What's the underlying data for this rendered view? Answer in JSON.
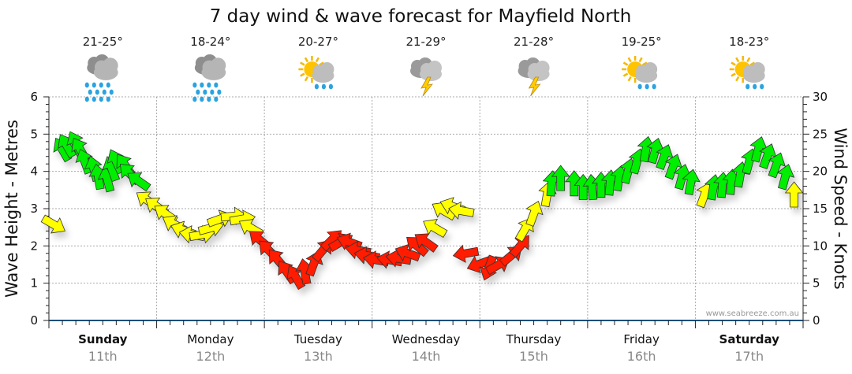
{
  "chart_data": {
    "type": "scatter",
    "title": "7 day wind & wave forecast for Mayfield North",
    "ylabel_left": "Wave Height - Metres",
    "ylabel_right": "Wind Speed - Knots",
    "ylim_left": [
      0,
      6
    ],
    "ylim_right": [
      0,
      30
    ],
    "yticks_left": [
      "0",
      "1",
      "2",
      "3",
      "4",
      "5",
      "6"
    ],
    "yticks_right": [
      "0",
      "5",
      "10",
      "15",
      "20",
      "25",
      "30"
    ],
    "xlim_hours": [
      0,
      168
    ],
    "grid": true,
    "watermark": "www.seabreeze.com.au",
    "days": [
      {
        "day": "Sunday",
        "date": "11th",
        "bold": true,
        "temp": "21-25°",
        "icon": "rain-icon"
      },
      {
        "day": "Monday",
        "date": "12th",
        "bold": false,
        "temp": "18-24°",
        "icon": "rain-icon"
      },
      {
        "day": "Tuesday",
        "date": "13th",
        "bold": false,
        "temp": "20-27°",
        "icon": "sun-cloud-shower-icon"
      },
      {
        "day": "Wednesday",
        "date": "14th",
        "bold": false,
        "temp": "21-29°",
        "icon": "storm-icon"
      },
      {
        "day": "Thursday",
        "date": "15th",
        "bold": false,
        "temp": "21-28°",
        "icon": "storm-icon"
      },
      {
        "day": "Friday",
        "date": "16th",
        "bold": false,
        "temp": "19-25°",
        "icon": "sun-cloud-shower-icon"
      },
      {
        "day": "Saturday",
        "date": "17th",
        "bold": true,
        "temp": "18-23°",
        "icon": "sun-cloud-shower-icon"
      }
    ],
    "wind_color_scale": {
      "red_below": 11,
      "yellow_below": 17,
      "red": "#ff1a00",
      "yellow": "#ffff00",
      "green": "#00ee00"
    },
    "wind": {
      "hours": [
        1,
        3,
        4,
        6,
        7,
        8,
        10,
        11,
        13,
        14,
        15,
        17,
        18,
        20,
        22,
        24,
        26,
        28,
        30,
        32,
        34,
        36,
        38,
        41,
        43,
        45,
        47,
        49,
        51,
        53,
        55,
        57,
        59,
        61,
        63,
        65,
        67,
        69,
        71,
        73,
        76,
        78,
        80,
        82,
        84,
        86,
        88,
        90,
        92,
        93,
        96,
        98,
        100,
        103,
        105,
        106,
        108,
        111,
        112,
        114,
        117,
        119,
        121,
        123,
        125,
        127,
        129,
        131,
        133,
        135,
        137,
        139,
        141,
        143,
        146,
        148,
        150,
        152,
        154,
        156,
        158,
        160,
        162,
        164,
        166
      ],
      "knots": [
        12.9,
        22.9,
        23.4,
        23.7,
        22.9,
        21.3,
        20.3,
        19.2,
        18.9,
        20.3,
        21.3,
        20.8,
        19.7,
        18.7,
        16.1,
        15.3,
        14.3,
        12.9,
        12.1,
        11.5,
        11.5,
        12.4,
        13.6,
        14.0,
        13.6,
        12.4,
        10.8,
        9.4,
        8.1,
        6.5,
        5.8,
        6.5,
        7.6,
        9.4,
        10.8,
        10.5,
        10.5,
        9.4,
        8.7,
        8.1,
        8.1,
        8.3,
        9.0,
        10.0,
        10.5,
        12.4,
        14.7,
        15.3,
        14.7,
        9.0,
        7.6,
        7.1,
        7.4,
        8.7,
        10.0,
        12.2,
        14.3,
        16.9,
        18.3,
        19.0,
        18.3,
        17.8,
        17.8,
        18.1,
        18.4,
        19.0,
        20.0,
        21.3,
        22.9,
        22.7,
        21.9,
        20.6,
        19.2,
        18.5,
        16.8,
        17.8,
        18.1,
        18.5,
        19.5,
        21.3,
        22.9,
        22.0,
        20.8,
        19.2,
        16.8
      ],
      "heading": [
        120,
        -30,
        -30,
        -25,
        -30,
        -20,
        -15,
        -10,
        -15,
        -20,
        -25,
        -35,
        -45,
        -55,
        -55,
        -55,
        -55,
        -60,
        -70,
        -80,
        80,
        75,
        70,
        85,
        80,
        -60,
        -50,
        -45,
        -40,
        -35,
        -30,
        -10,
        20,
        40,
        45,
        60,
        -70,
        -80,
        -80,
        -80,
        -80,
        -80,
        -70,
        -50,
        -55,
        -60,
        -60,
        -70,
        -80,
        -100,
        -110,
        -160,
        60,
        50,
        40,
        30,
        20,
        10,
        5,
        0,
        0,
        0,
        -5,
        0,
        5,
        10,
        15,
        15,
        10,
        15,
        20,
        20,
        15,
        10,
        20,
        10,
        5,
        5,
        10,
        15,
        15,
        20,
        20,
        15,
        0
      ]
    }
  }
}
